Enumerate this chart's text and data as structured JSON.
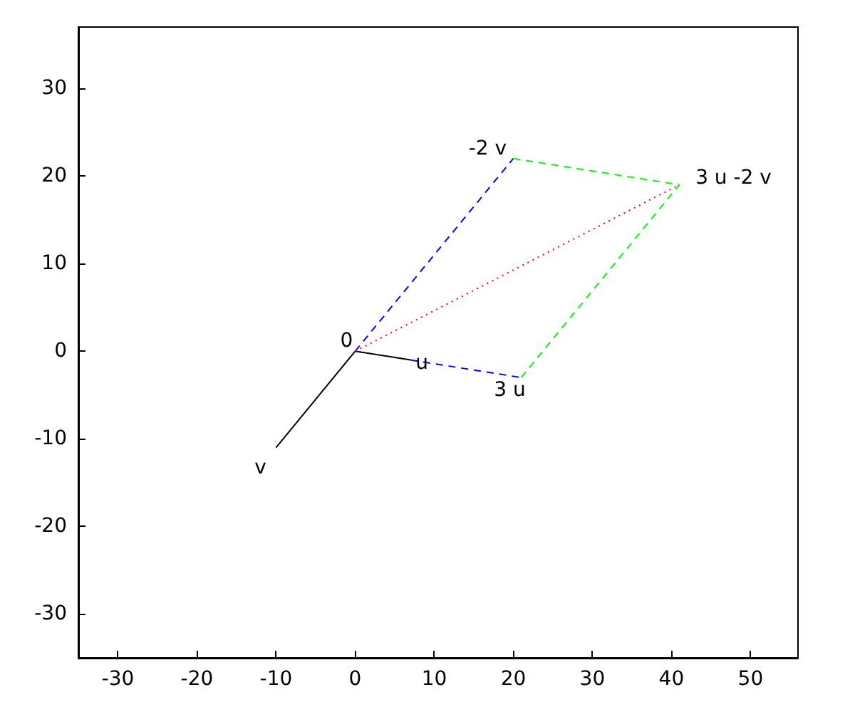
{
  "chart_data": {
    "type": "line",
    "xlim": [
      -35,
      56
    ],
    "ylim": [
      -35,
      37
    ],
    "xticks": [
      -30,
      -20,
      -10,
      0,
      10,
      20,
      30,
      40,
      50
    ],
    "yticks": [
      -30,
      -20,
      -10,
      0,
      10,
      20,
      30
    ],
    "grid": false,
    "marker": "none",
    "series": [
      {
        "color": "#000000",
        "line_style": "solid",
        "x": [
          0,
          7
        ],
        "values": [
          0,
          -1
        ]
      },
      {
        "color": "#000000",
        "line_style": "solid",
        "x": [
          0,
          -10
        ],
        "values": [
          0,
          -11
        ]
      },
      {
        "color": "#0000ff",
        "line_style": "dashed",
        "x": [
          0,
          20
        ],
        "values": [
          0,
          22
        ]
      },
      {
        "color": "#0000ff",
        "line_style": "dashed",
        "x": [
          7,
          21
        ],
        "values": [
          -1,
          -3
        ]
      },
      {
        "color": "#00ff00",
        "line_style": "dashed",
        "x": [
          20,
          41
        ],
        "values": [
          22,
          19
        ]
      },
      {
        "color": "#00ff00",
        "line_style": "dashed",
        "x": [
          21,
          41
        ],
        "values": [
          -3,
          19
        ]
      },
      {
        "color": "#ff0000",
        "line_style": "dotted",
        "x": [
          0,
          41
        ],
        "values": [
          0,
          19
        ]
      }
    ],
    "annotations": [
      {
        "text": "0",
        "x": 0,
        "y": 0
      },
      {
        "text": "u",
        "x": 7,
        "y": -1
      },
      {
        "text": "v",
        "x": -10,
        "y": -11
      },
      {
        "text": "-2 v",
        "x": 20,
        "y": 22
      },
      {
        "text": "3 u -2 v",
        "x": 41,
        "y": 19
      },
      {
        "text": "3 u",
        "x": 21,
        "y": -3
      }
    ]
  }
}
